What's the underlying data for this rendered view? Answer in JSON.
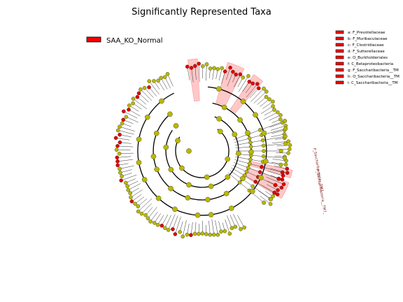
{
  "figure": {
    "title": "Significantly Represented Taxa",
    "group_legend": {
      "label": "SAA_KO_Normal",
      "color": "#ff0000"
    },
    "taxa_key": [
      {
        "letter": "a",
        "text": "a: F_Prevotellaceae"
      },
      {
        "letter": "b",
        "text": "b: F_Muribaculaceae"
      },
      {
        "letter": "c",
        "text": "c: F_Clostridiaceae"
      },
      {
        "letter": "d",
        "text": "d: F_Sutterellaceae"
      },
      {
        "letter": "e",
        "text": "e: O_Burkholderiales"
      },
      {
        "letter": "f",
        "text": "f: C_Betaproteobacteria"
      },
      {
        "letter": "g",
        "text": "g: F_Saccharibacteria__TM"
      },
      {
        "letter": "h",
        "text": "h: O_Saccharibacteria__TM"
      },
      {
        "letter": "i",
        "text": "i: C_Saccharibacteria__TM"
      }
    ],
    "clade_labels": [
      {
        "text": "P_Saccharibacteria__TM7_"
      },
      {
        "text": "P_Saccharibacteria__TM7_"
      }
    ],
    "colors": {
      "significant_node": "#e00000",
      "nonsignificant_node": "#b8b800",
      "highlight": "#ff6060",
      "edge": "#000000"
    }
  }
}
